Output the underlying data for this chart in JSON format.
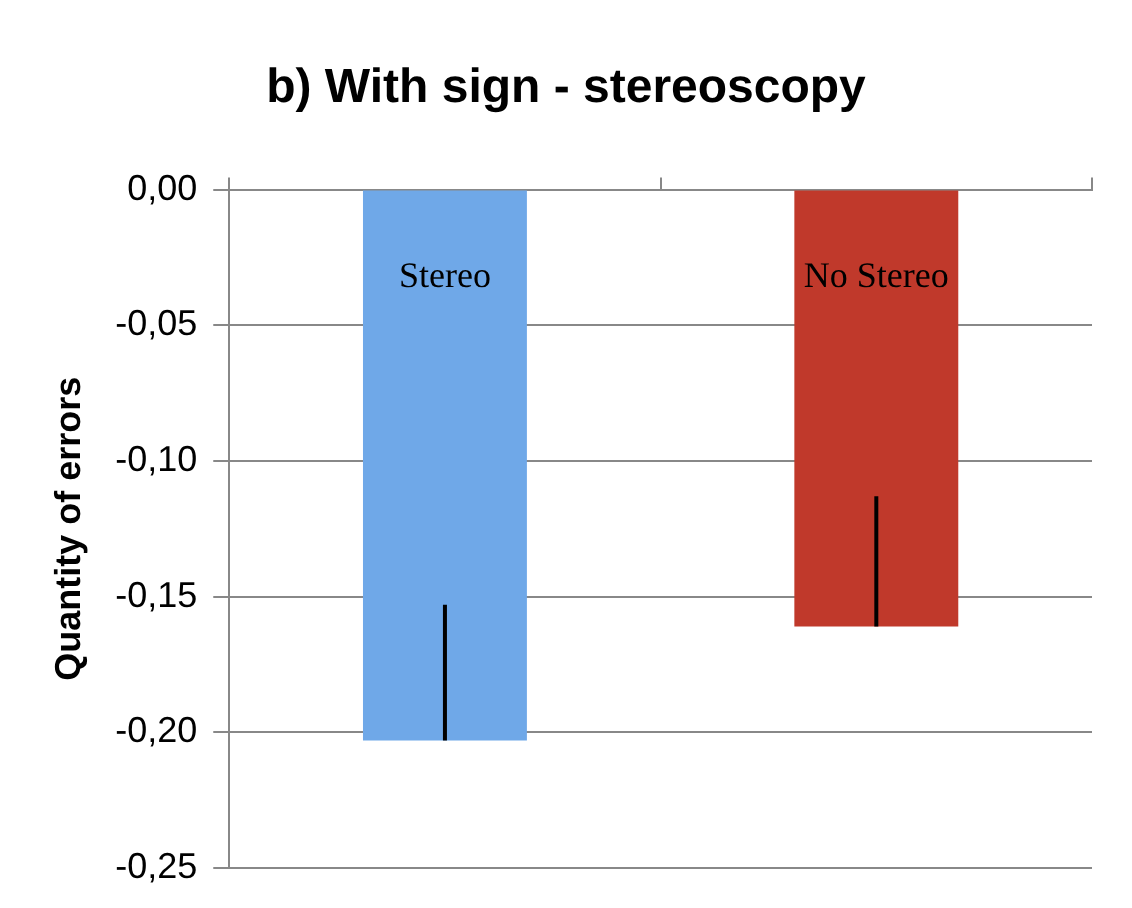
{
  "chart_data": {
    "type": "bar",
    "title": "b) With sign - stereoscopy",
    "ylabel": "Quantity of errors",
    "categories": [
      "Stereo",
      "No Stereo"
    ],
    "values": [
      -0.203,
      -0.161
    ],
    "colors": [
      "#6fa8e8",
      "#c0392b"
    ],
    "errors": [
      [
        -0.203,
        -0.153
      ],
      [
        -0.161,
        -0.113
      ]
    ],
    "ylim": [
      -0.25,
      0
    ],
    "yticks": [
      {
        "value": 0,
        "label": "0,00"
      },
      {
        "value": -0.05,
        "label": "-0,05"
      },
      {
        "value": -0.1,
        "label": "-0,10"
      },
      {
        "value": -0.15,
        "label": "-0,15"
      },
      {
        "value": -0.2,
        "label": "-0,20"
      },
      {
        "value": -0.25,
        "label": "-0,25"
      }
    ],
    "grid": "y",
    "tick_labels": "y",
    "legend": false
  }
}
